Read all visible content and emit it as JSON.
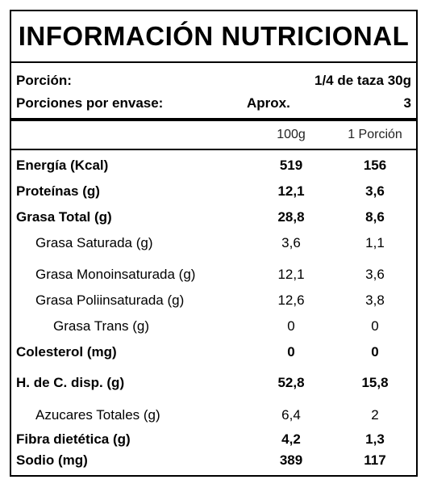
{
  "title": "INFORMACIÓN NUTRICIONAL",
  "serving": {
    "label": "Porción:",
    "value": "1/4 de taza 30g"
  },
  "servings_per_container": {
    "label": "Porciones por envase:",
    "approx": "Aprox.",
    "value": "3"
  },
  "columns": [
    "100g",
    "1 Porción"
  ],
  "rows": [
    {
      "name": "Energía (Kcal)",
      "v100": "519",
      "vportion": "156"
    },
    {
      "name": "Proteínas (g)",
      "v100": "12,1",
      "vportion": "3,6"
    },
    {
      "name": "Grasa Total (g)",
      "v100": "28,8",
      "vportion": "8,6"
    },
    {
      "name": "Grasa Saturada (g)",
      "v100": "3,6",
      "vportion": "1,1"
    },
    {
      "name": "Grasa Monoinsaturada (g)",
      "v100": "12,1",
      "vportion": "3,6"
    },
    {
      "name": "Grasa Poliinsaturada (g)",
      "v100": "12,6",
      "vportion": "3,8"
    },
    {
      "name": "Grasa Trans (g)",
      "v100": "0",
      "vportion": "0"
    },
    {
      "name": "Colesterol (mg)",
      "v100": "0",
      "vportion": "0"
    },
    {
      "name": "H. de C. disp. (g)",
      "v100": "52,8",
      "vportion": "15,8"
    },
    {
      "name": "Azucares Totales (g)",
      "v100": "6,4",
      "vportion": "2"
    },
    {
      "name": "Fibra dietética (g)",
      "v100": "4,2",
      "vportion": "1,3"
    },
    {
      "name": "Sodio (mg)",
      "v100": "389",
      "vportion": "117"
    }
  ]
}
